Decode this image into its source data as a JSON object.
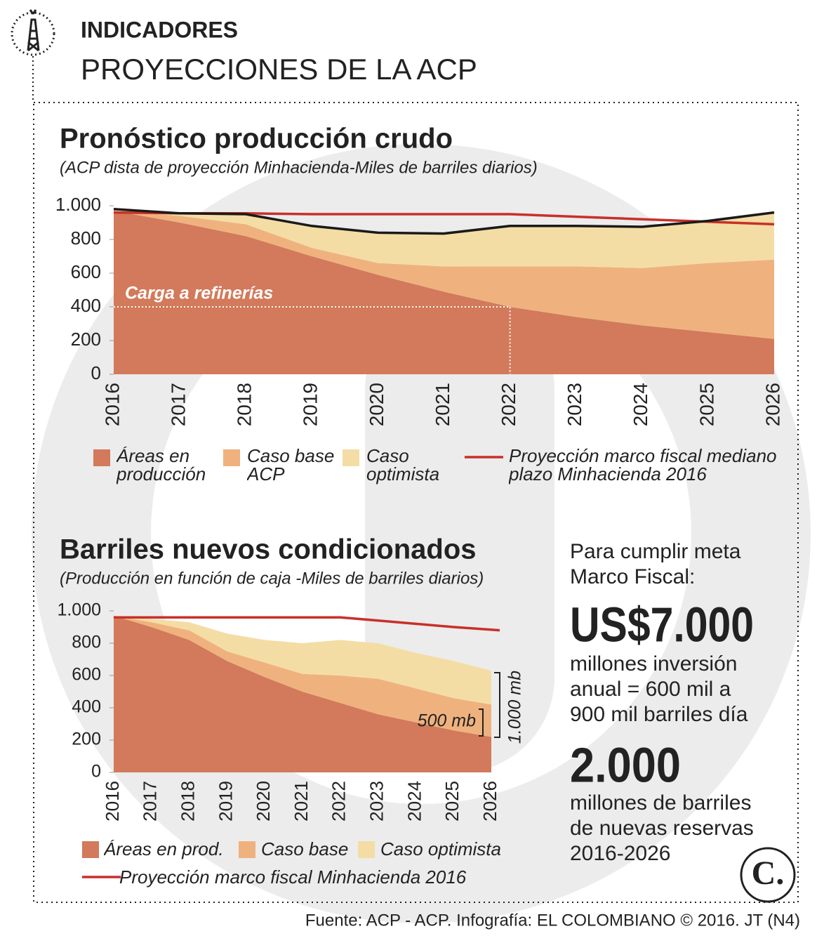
{
  "header": {
    "kicker": "INDICADORES",
    "title": "PROYECCIONES DE LA ACP"
  },
  "chart_data": [
    {
      "type": "area",
      "title": "Pronóstico producción crudo",
      "subtitle": "(ACP dista de proyección Minhacienda-Miles de barriles diarios)",
      "categories": [
        "2016",
        "2017",
        "2018",
        "2019",
        "2020",
        "2021",
        "2022",
        "2023",
        "2024",
        "2025",
        "2026"
      ],
      "ylim": [
        0,
        1000
      ],
      "yticks": [
        0,
        200,
        400,
        600,
        800,
        {
          "value": 1000,
          "label": "1.000"
        }
      ],
      "outline": "#1a1a1a",
      "series": [
        {
          "name": "Áreas en producción",
          "color": "#d27a5b",
          "values": [
            970,
            900,
            820,
            700,
            590,
            490,
            400,
            340,
            290,
            250,
            210
          ]
        },
        {
          "name": "Caso base ACP",
          "color": "#efb27e",
          "values": [
            0,
            40,
            70,
            50,
            70,
            150,
            240,
            300,
            340,
            410,
            470
          ]
        },
        {
          "name": "Caso optimista",
          "color": "#f4dda5",
          "values": [
            10,
            15,
            60,
            130,
            180,
            195,
            240,
            240,
            245,
            250,
            280
          ]
        },
        {
          "name": "Proyección marco fiscal mediano plazo Minhacienda 2016",
          "type": "line",
          "color": "#c8302a",
          "values": [
            960,
            955,
            955,
            950,
            950,
            950,
            950,
            935,
            920,
            905,
            890
          ]
        }
      ],
      "annotations": [
        {
          "label": "Carga a refinerías",
          "value": 400,
          "until": "2022"
        }
      ]
    },
    {
      "type": "area",
      "title": "Barriles nuevos condicionados",
      "subtitle": "(Producción en función de caja -Miles de barriles diarios)",
      "categories": [
        "2016",
        "2017",
        "2018",
        "2019",
        "2020",
        "2021",
        "2022",
        "2023",
        "2024",
        "2025",
        "2026"
      ],
      "ylim": [
        0,
        1000
      ],
      "yticks": [
        0,
        200,
        400,
        600,
        800,
        {
          "value": 1000,
          "label": "1.000"
        }
      ],
      "series": [
        {
          "name": "Áreas en prod.",
          "color": "#d27a5b",
          "values": [
            970,
            900,
            820,
            690,
            590,
            500,
            430,
            360,
            310,
            260,
            220
          ]
        },
        {
          "name": "Caso base",
          "color": "#efb27e",
          "values": [
            0,
            30,
            60,
            60,
            90,
            110,
            170,
            220,
            210,
            200,
            200
          ]
        },
        {
          "name": "Caso optimista",
          "color": "#f4dda5",
          "values": [
            0,
            20,
            50,
            110,
            140,
            190,
            220,
            220,
            220,
            230,
            210
          ]
        },
        {
          "name": "Proyección marco fiscal Minhacienda 2016",
          "type": "line",
          "color": "#c8302a",
          "values": [
            960,
            960,
            960,
            960,
            960,
            960,
            960,
            940,
            920,
            900,
            880
          ]
        }
      ],
      "annotations": [
        {
          "label": "500 mb"
        },
        {
          "label": "1.000 mb"
        }
      ]
    }
  ],
  "sidebar": {
    "intro": "Para cumplir meta Marco Fiscal:",
    "figure1": "US$7.000",
    "text1": "millones inversión anual = 600 mil a 900 mil barriles día",
    "figure2": "2.000",
    "text2": "millones de barriles de nuevas reservas 2016-2026"
  },
  "logo": "C.",
  "source": "Fuente: ACP - ACP. Infografía: EL COLOMBIANO © 2016. JT (N4)"
}
